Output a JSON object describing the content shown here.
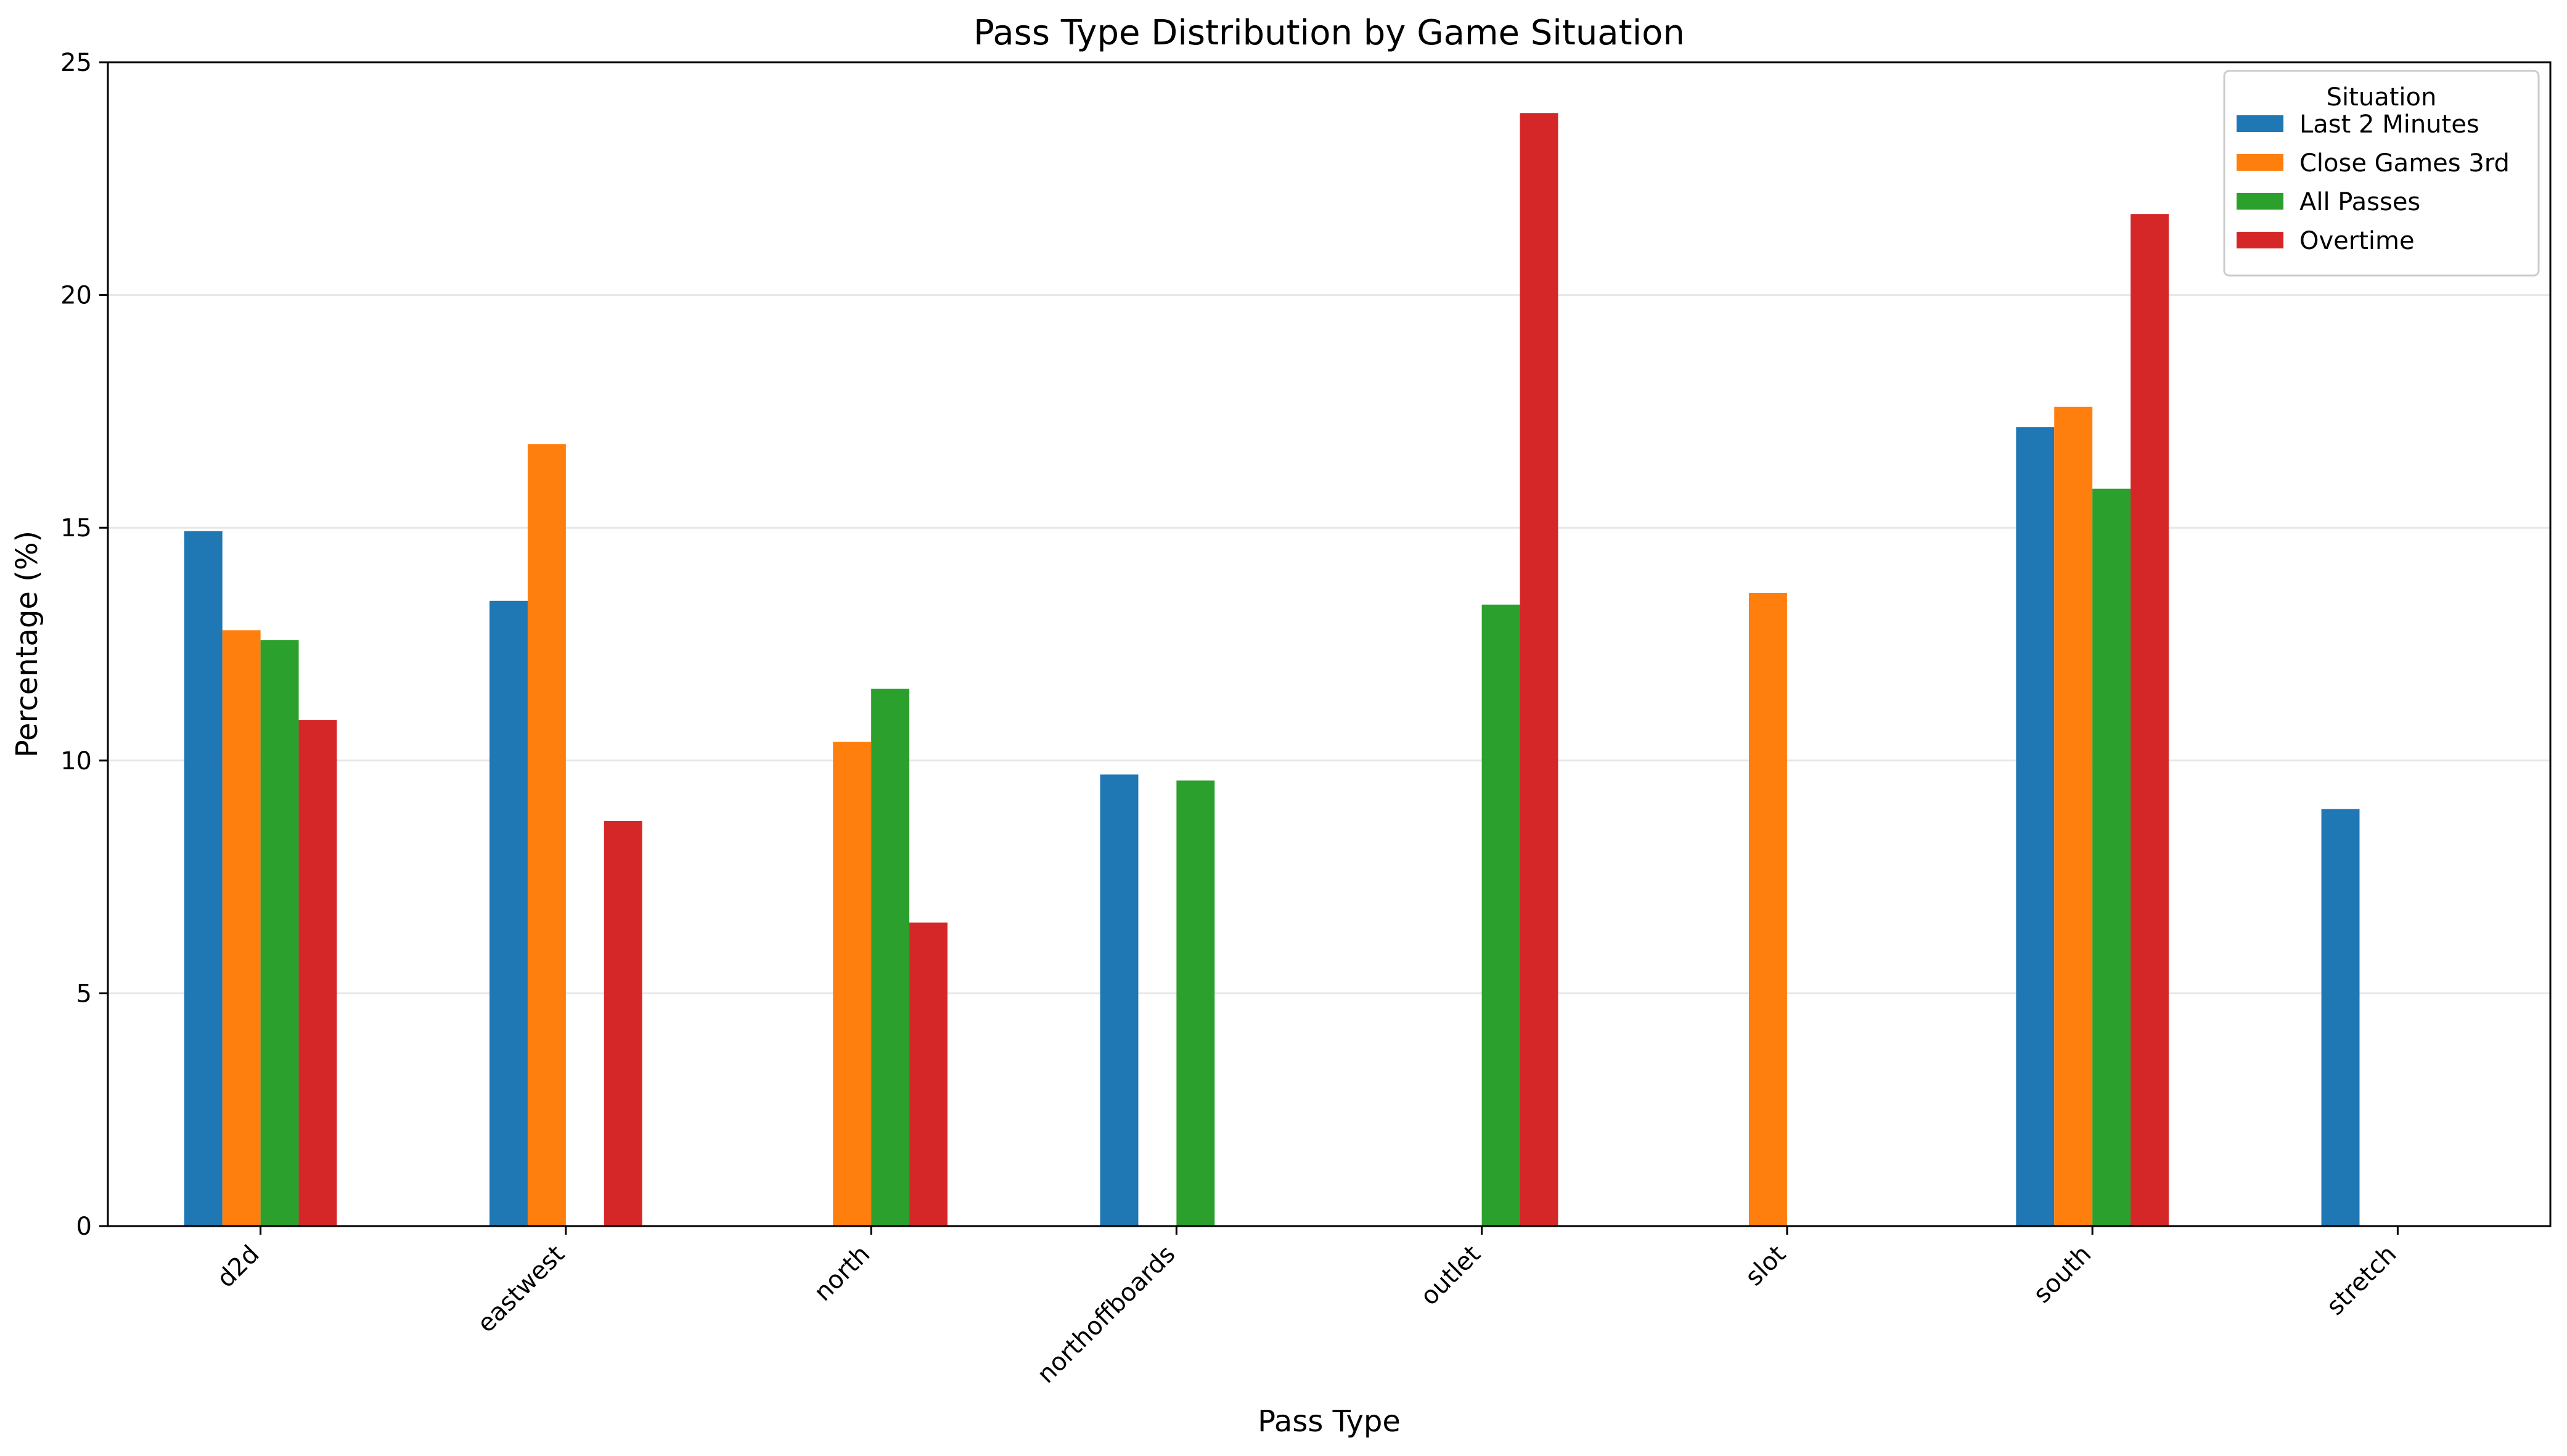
{
  "chart_data": {
    "type": "bar",
    "title": "Pass Type Distribution by Game Situation",
    "xlabel": "Pass Type",
    "ylabel": "Percentage (%)",
    "ylim": [
      0,
      25
    ],
    "yticks": [
      0,
      5,
      10,
      15,
      20,
      25
    ],
    "grid": "y",
    "categories": [
      "d2d",
      "eastwest",
      "north",
      "northoffboards",
      "outlet",
      "slot",
      "south",
      "stretch"
    ],
    "series": [
      {
        "name": "Last 2 Minutes",
        "color": "#1f77b4",
        "values": [
          14.93,
          13.43,
          null,
          9.7,
          null,
          null,
          17.16,
          8.96
        ]
      },
      {
        "name": "Close Games 3rd",
        "color": "#ff7f0e",
        "values": [
          12.8,
          16.8,
          10.4,
          null,
          null,
          13.6,
          17.6,
          null
        ]
      },
      {
        "name": "All Passes",
        "color": "#2ca02c",
        "values": [
          12.59,
          null,
          11.54,
          9.57,
          13.35,
          null,
          15.84,
          null
        ]
      },
      {
        "name": "Overtime",
        "color": "#d62728",
        "values": [
          10.87,
          8.7,
          6.52,
          null,
          23.91,
          null,
          21.74,
          null
        ]
      }
    ],
    "legend": {
      "title": "Situation",
      "position": "top-right"
    }
  }
}
